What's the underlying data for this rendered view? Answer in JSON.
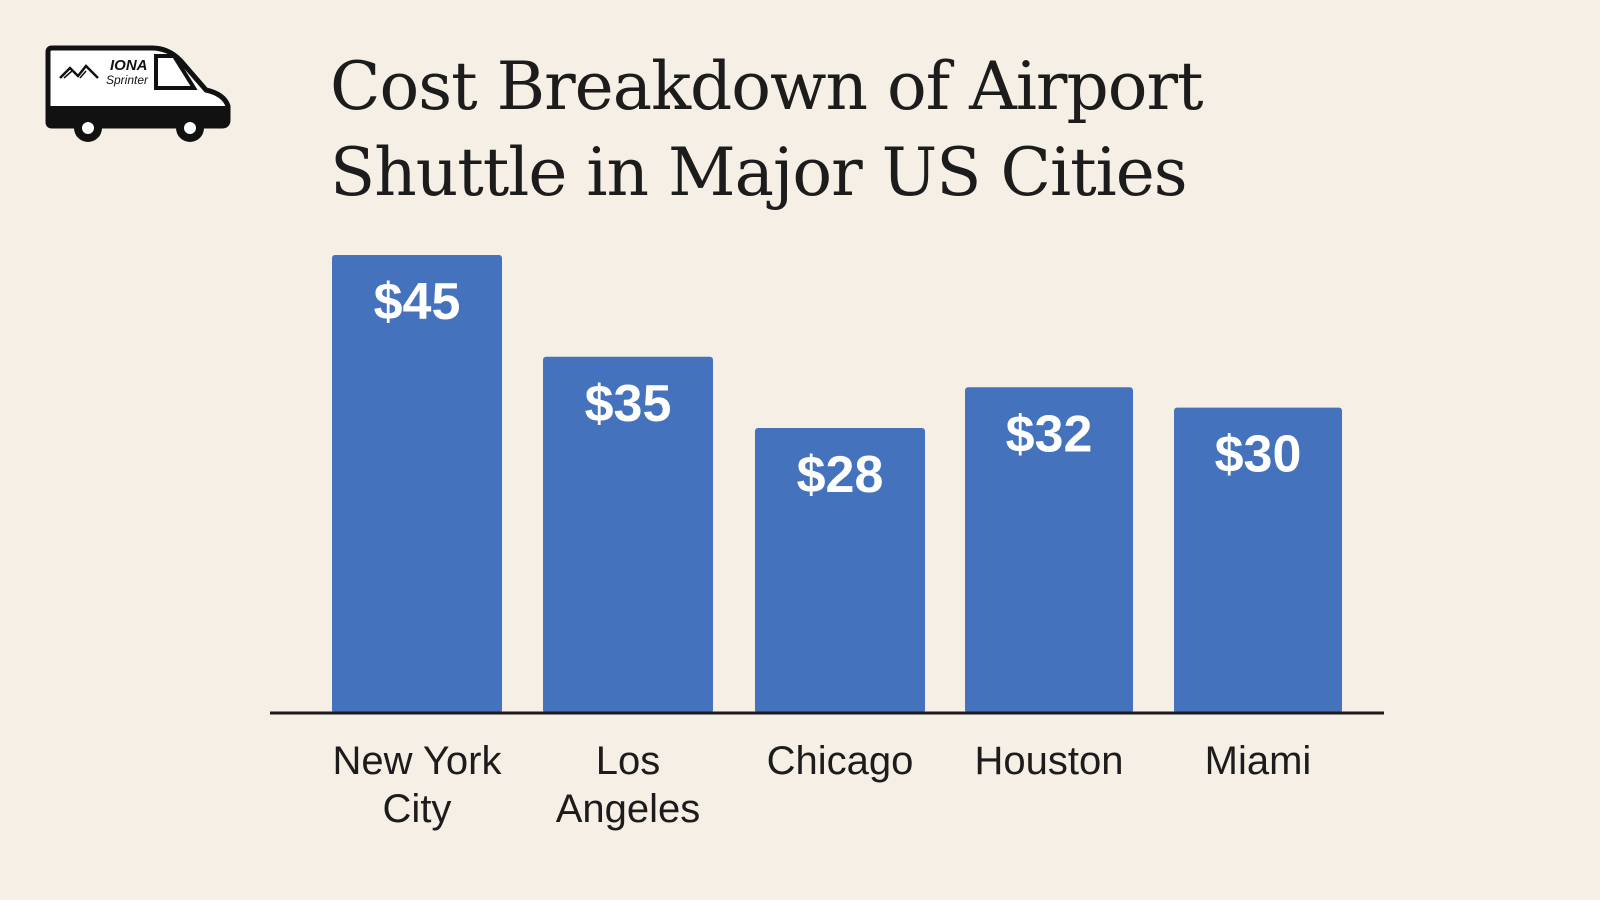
{
  "logo": {
    "brand_line1": "IONA",
    "brand_line2": "Sprinter",
    "icon": "van-icon"
  },
  "chart_data": {
    "type": "bar",
    "title": "Cost Breakdown of Airport Shuttle in Major US Cities",
    "title_lines": [
      "Cost Breakdown of Airport",
      "Shuttle in Major US Cities"
    ],
    "categories": [
      "New York City",
      "Los Angeles",
      "Chicago",
      "Houston",
      "Miami"
    ],
    "category_lines": [
      [
        "New York",
        "City"
      ],
      [
        "Los",
        "Angeles"
      ],
      [
        "Chicago"
      ],
      [
        "Houston"
      ],
      [
        "Miami"
      ]
    ],
    "values": [
      45,
      35,
      28,
      32,
      30
    ],
    "value_labels": [
      "$45",
      "$35",
      "$28",
      "$32",
      "$30"
    ],
    "xlabel": "",
    "ylabel": "",
    "ylim": [
      0,
      45
    ],
    "grid": false,
    "colors": {
      "bar": "#4472bd",
      "background": "#f5efe6",
      "axis": "#1c1c1c"
    }
  }
}
